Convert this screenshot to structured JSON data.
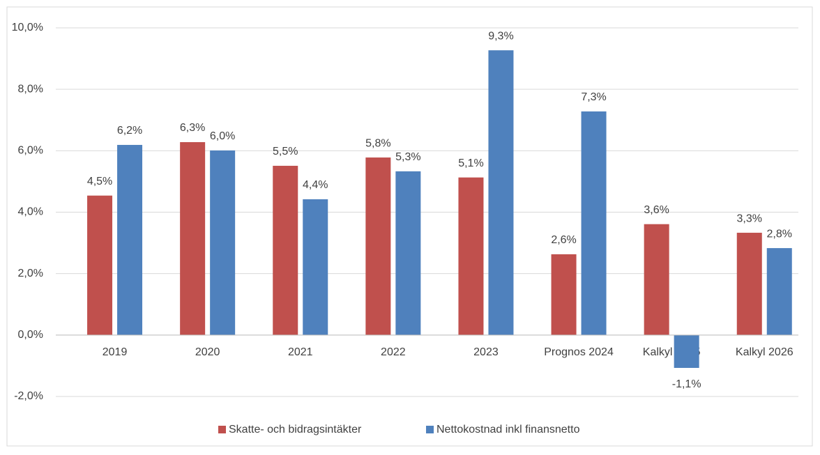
{
  "chart_data": {
    "type": "bar",
    "categories": [
      "2019",
      "2020",
      "2021",
      "2022",
      "2023",
      "Prognos 2024",
      "Kalkyl 2025",
      "Kalkyl 2026"
    ],
    "series": [
      {
        "name": "Skatte- och bidragsintäkter",
        "color": "#c0504d",
        "values": [
          4.54,
          6.28,
          5.51,
          5.78,
          5.13,
          2.63,
          3.61,
          3.33
        ],
        "value_labels": [
          "4,5%",
          "6,3%",
          "5,5%",
          "5,8%",
          "5,1%",
          "2,6%",
          "3,6%",
          "3,3%"
        ]
      },
      {
        "name": "Nettokostnad inkl finansnetto",
        "color": "#4f81bd",
        "values": [
          6.19,
          6.01,
          4.42,
          5.33,
          9.27,
          7.28,
          -1.07,
          2.83
        ],
        "value_labels": [
          "6,2%",
          "6,0%",
          "4,4%",
          "5,3%",
          "9,3%",
          "7,3%",
          "-1,1%",
          "2,8%"
        ]
      }
    ],
    "ylim": [
      -2,
      10
    ],
    "yticks": [
      {
        "value": -2,
        "label": "-2,0%"
      },
      {
        "value": 0,
        "label": "0,0%"
      },
      {
        "value": 2,
        "label": "2,0%"
      },
      {
        "value": 4,
        "label": "4,0%"
      },
      {
        "value": 6,
        "label": "6,0%"
      },
      {
        "value": 8,
        "label": "8,0%"
      },
      {
        "value": 10,
        "label": "10,0%"
      }
    ],
    "grid": true,
    "legend": "bottom"
  }
}
